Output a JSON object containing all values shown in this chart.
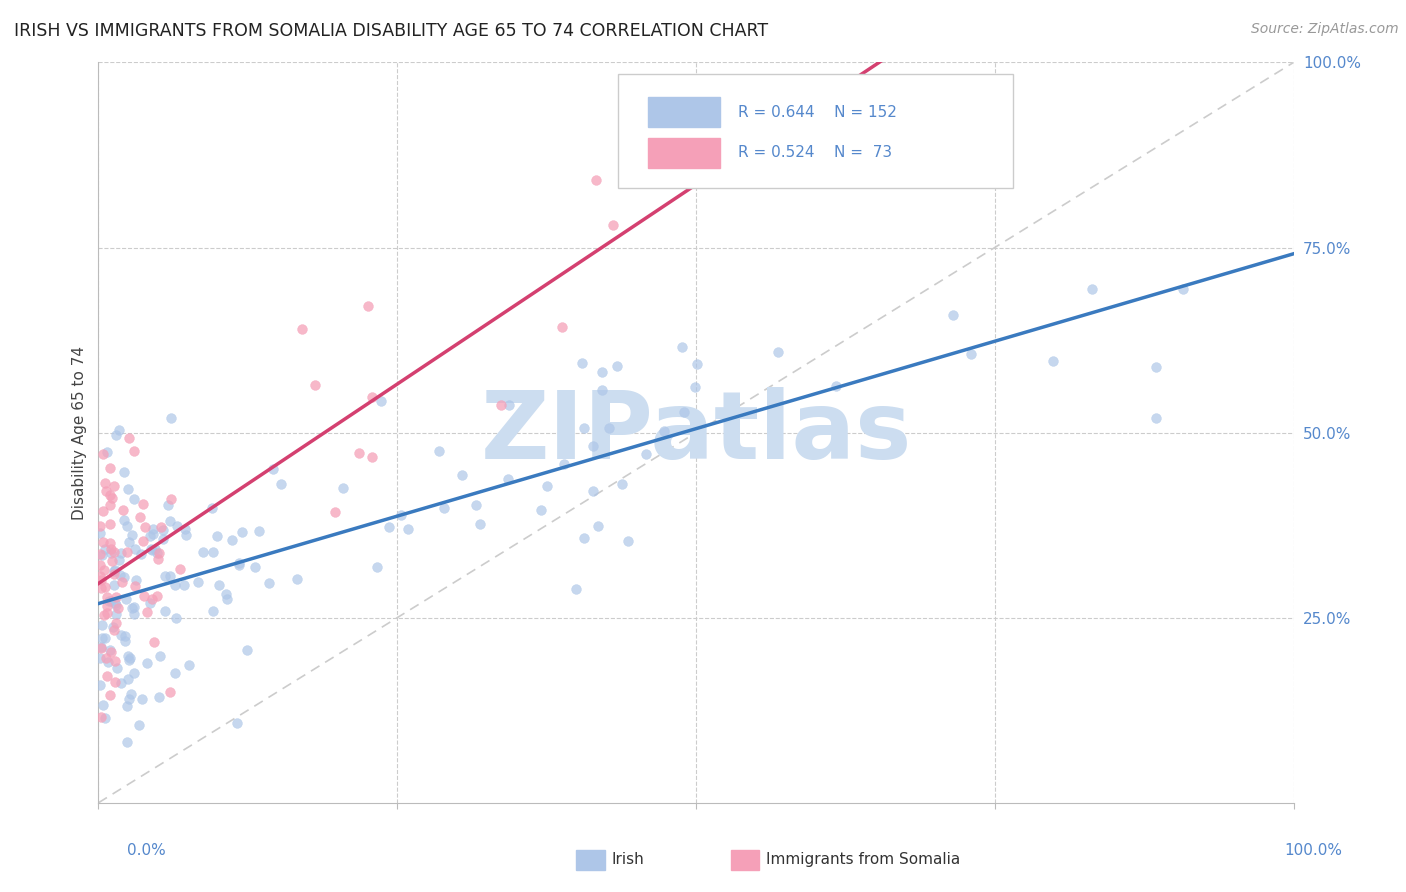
{
  "title": "IRISH VS IMMIGRANTS FROM SOMALIA DISABILITY AGE 65 TO 74 CORRELATION CHART",
  "source": "Source: ZipAtlas.com",
  "ylabel": "Disability Age 65 to 74",
  "irish_R": 0.644,
  "irish_N": 152,
  "somalia_R": 0.524,
  "somalia_N": 73,
  "irish_color": "#aec6e8",
  "somalia_color": "#f5a0b8",
  "irish_line_color": "#3a7abf",
  "somalia_line_color": "#d44070",
  "ref_line_color": "#cccccc",
  "grid_color": "#cccccc",
  "ytick_color": "#5588cc",
  "xtick_color": "#5588cc",
  "watermark": "ZIPatlas",
  "watermark_color": "#ccddf0",
  "background_color": "#ffffff",
  "title_fontsize": 12.5,
  "tick_fontsize": 11,
  "legend_fontsize": 11,
  "source_fontsize": 10,
  "ylabel_fontsize": 11
}
